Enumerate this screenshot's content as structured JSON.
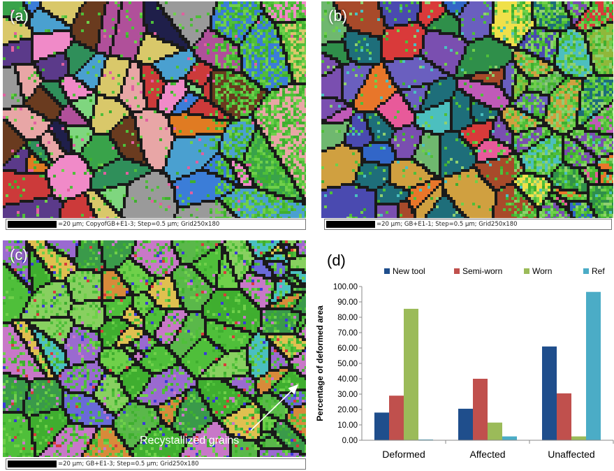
{
  "panels": [
    {
      "label": "(a)",
      "caption": "=20 µm; CopyofGB+E1-3; Step=0.5 µm; Grid250x180",
      "palette": [
        "#3b7dd8",
        "#e07b22",
        "#cc3a3a",
        "#8a4fb8",
        "#f08ac8",
        "#2f8f5a",
        "#1f1f4a",
        "#7fd67f",
        "#d9c86a",
        "#6a3b1f",
        "#b0509a",
        "#4aa0d0",
        "#9a9a9a",
        "#5b3a8a",
        "#e8a6a6",
        "#39a34a"
      ]
    },
    {
      "label": "(b)",
      "caption": "=20 µm; GB+E1-1; Step=0.5 µm; Grid250x180",
      "palette": [
        "#3266c8",
        "#6a5fbf",
        "#d93a3a",
        "#e8762a",
        "#4cbfbf",
        "#2f8f4a",
        "#c05ab8",
        "#8fb83a",
        "#f0e04a",
        "#7a4fb0",
        "#1e6e7a",
        "#e85a9a",
        "#6fb86f",
        "#a84a2a",
        "#d0a040",
        "#4a4ab0"
      ]
    },
    {
      "label": "(c)",
      "caption": "=20 µm; GB+E1-3; Step=0.5 µm; Grid250x180",
      "annotation": "Recystallized grains",
      "palette": [
        "#4fbf3a",
        "#3fae2f",
        "#6fd04a",
        "#6a6ad8",
        "#c878c8",
        "#d88a3a",
        "#4ac0c0",
        "#9a6ad0",
        "#5ab84a",
        "#88d060",
        "#e0c050",
        "#3a9a4a"
      ]
    }
  ],
  "chart_data": {
    "type": "bar",
    "label": "(d)",
    "categories": [
      "Deformed",
      "Affected",
      "Unaffected"
    ],
    "series": [
      {
        "name": "New tool",
        "color": "#1f4e8c",
        "values": [
          18.0,
          20.5,
          61.0
        ]
      },
      {
        "name": "Semi-worn",
        "color": "#c0504d",
        "values": [
          29.0,
          40.0,
          30.5
        ]
      },
      {
        "name": "Worn",
        "color": "#9bbb59",
        "values": [
          85.5,
          11.5,
          2.5
        ]
      },
      {
        "name": "Ref",
        "color": "#4bacc6",
        "values": [
          0.5,
          2.5,
          96.5
        ]
      }
    ],
    "ylabel": "Percentage of deformed area",
    "ylim": [
      0,
      100
    ],
    "yticks": [
      "0.00",
      "10.00",
      "20.00",
      "30.00",
      "40.00",
      "50.00",
      "60.00",
      "70.00",
      "80.00",
      "90.00",
      "100.00"
    ],
    "legend_position": "top",
    "grid": false
  }
}
